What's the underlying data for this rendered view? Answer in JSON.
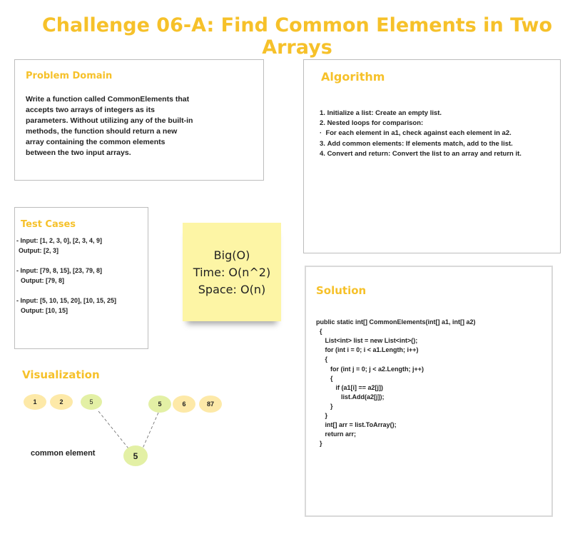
{
  "title": "Challenge 06-A: Find Common Elements in Two Arrays",
  "problem_domain": {
    "heading": "Problem Domain",
    "lines": [
      "Write a function called CommonElements that",
      "accepts two arrays of integers as its",
      "parameters. Without utilizing any of the built-in",
      "methods, the function should return a new",
      "array containing the common elements",
      "between the two input arrays."
    ]
  },
  "algorithm": {
    "heading": "Algorithm",
    "steps": [
      "Initialize a list: Create an empty list.",
      "Nested loops for comparison:",
      "Add common elements: If elements match, add to the list.",
      "Convert and return: Convert the list to an array and return it."
    ],
    "sub_bullet": "For each element in a1, check against each element in a2."
  },
  "test_cases": {
    "heading": "Test Cases",
    "cases": [
      {
        "input": "- Input: [1, 2, 3, 0], [2, 3, 4, 9]",
        "output": "Output: [2, 3]"
      },
      {
        "input": "- Input: [79, 8, 15], [23, 79, 8]",
        "output": "Output: [79, 8]"
      },
      {
        "input": "- Input: [5, 10, 15, 20], [10, 15, 25]",
        "output": "Output: [10, 15]"
      }
    ]
  },
  "big_o": {
    "line1": "Big(O)",
    "line2": "Time: O(n^2)",
    "line3": "Space: O(n)"
  },
  "solution": {
    "heading": "Solution",
    "code_lines": [
      "public static int[] CommonElements(int[] a1, int[] a2)",
      "  {",
      "     List<int> list = new List<int>();",
      "     for (int i = 0; i < a1.Length; i++)",
      "     {",
      "        for (int j = 0; j < a2.Length; j++)",
      "        {",
      "           if (a1[i] == a2[j])",
      "              list.Add(a2[j]);",
      "        }",
      "     }",
      "     int[] arr = list.ToArray();",
      "     return arr;",
      "  }"
    ]
  },
  "visualization": {
    "heading": "Visualization",
    "array1": [
      "1",
      "2",
      "5"
    ],
    "array2": [
      "5",
      "6",
      "87"
    ],
    "common_label": "common element",
    "common_value": "5",
    "colors": {
      "yellow": "#fde9a8",
      "green": "#e3f0a5",
      "accent": "#f6c12a"
    }
  }
}
